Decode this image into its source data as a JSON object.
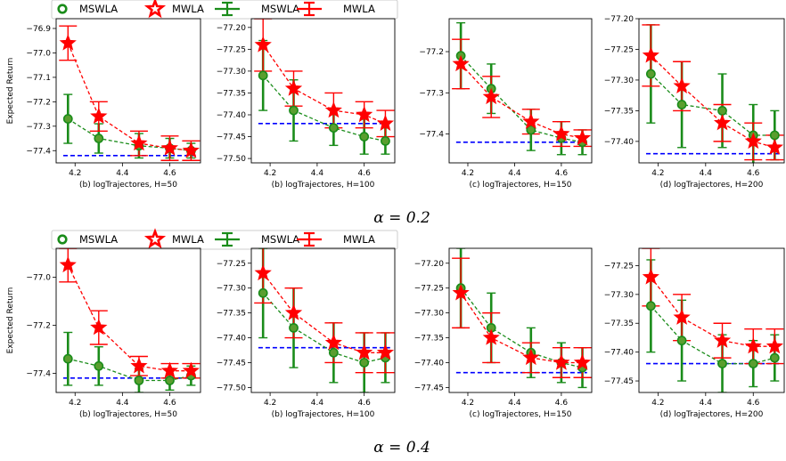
{
  "colors": {
    "mswla": "#1a8c1a",
    "mwla": "#ff0000",
    "reference": "#0000ff"
  },
  "legend": {
    "markers": [
      {
        "label": "MSWLA",
        "kind": "circle",
        "color": "#1a8c1a"
      },
      {
        "label": "MWLA",
        "kind": "star",
        "color": "#ff0000"
      },
      {
        "label": "MSWLA",
        "kind": "errorbar",
        "color": "#1a8c1a"
      },
      {
        "label": "MWLA",
        "kind": "errorbar",
        "color": "#ff0000"
      }
    ]
  },
  "chart_data": [
    {
      "alpha": "α = 0.2",
      "ylabel": "Expected Return",
      "panels": [
        {
          "type": "line",
          "xlabel": "(b) logTrajectores, H=50",
          "xlim": [
            4.12,
            4.73
          ],
          "ylim": [
            -77.45,
            -76.86
          ],
          "yticks": [
            -76.9,
            -77.0,
            -77.1,
            -77.2,
            -77.3,
            -77.4
          ],
          "yticklabels": [
            "−76.9",
            "−77.0",
            "−77.1",
            "−77.2",
            "−77.3",
            "−77.4"
          ],
          "xticks": [
            4.2,
            4.4,
            4.6
          ],
          "xticklabels": [
            "4.2",
            "4.4",
            "4.6"
          ],
          "x": [
            4.17,
            4.3,
            4.47,
            4.6,
            4.69
          ],
          "reference": -77.42,
          "series": [
            {
              "name": "MSWLA",
              "y": [
                -77.27,
                -77.35,
                -77.38,
                -77.39,
                -77.4
              ],
              "err": [
                0.1,
                0.06,
                0.05,
                0.04,
                0.03
              ]
            },
            {
              "name": "MWLA",
              "y": [
                -76.96,
                -77.26,
                -77.37,
                -77.39,
                -77.4
              ],
              "err": [
                0.07,
                0.06,
                0.05,
                0.05,
                0.04
              ]
            }
          ]
        },
        {
          "type": "line",
          "xlabel": "(b) logTrajectores, H=100",
          "xlim": [
            4.12,
            4.73
          ],
          "ylim": [
            -77.51,
            -77.18
          ],
          "yticks": [
            -77.2,
            -77.25,
            -77.3,
            -77.35,
            -77.4,
            -77.45,
            -77.5
          ],
          "yticklabels": [
            "−77.20",
            "−77.25",
            "−77.30",
            "−77.35",
            "−77.40",
            "−77.45",
            "−77.50"
          ],
          "xticks": [
            4.2,
            4.4,
            4.6
          ],
          "xticklabels": [
            "4.2",
            "4.4",
            "4.6"
          ],
          "x": [
            4.17,
            4.3,
            4.47,
            4.6,
            4.69
          ],
          "reference": -77.42,
          "series": [
            {
              "name": "MSWLA",
              "y": [
                -77.31,
                -77.39,
                -77.43,
                -77.45,
                -77.46
              ],
              "err": [
                0.08,
                0.07,
                0.04,
                0.04,
                0.03
              ]
            },
            {
              "name": "MWLA",
              "y": [
                -77.24,
                -77.34,
                -77.39,
                -77.4,
                -77.42
              ],
              "err": [
                0.06,
                0.04,
                0.04,
                0.03,
                0.03
              ]
            }
          ]
        },
        {
          "type": "line",
          "xlabel": "(c) logTrajectores, H=150",
          "xlim": [
            4.12,
            4.73
          ],
          "ylim": [
            -77.47,
            -77.12
          ],
          "yticks": [
            -77.2,
            -77.3,
            -77.4
          ],
          "yticklabels": [
            "−77.2",
            "−77.3",
            "−77.4"
          ],
          "xticks": [
            4.2,
            4.4,
            4.6
          ],
          "xticklabels": [
            "4.2",
            "4.4",
            "4.6"
          ],
          "x": [
            4.17,
            4.3,
            4.47,
            4.6,
            4.69
          ],
          "reference": -77.42,
          "series": [
            {
              "name": "MSWLA",
              "y": [
                -77.21,
                -77.29,
                -77.39,
                -77.41,
                -77.42
              ],
              "err": [
                0.08,
                0.06,
                0.05,
                0.04,
                0.03
              ]
            },
            {
              "name": "MWLA",
              "y": [
                -77.23,
                -77.31,
                -77.37,
                -77.4,
                -77.41
              ],
              "err": [
                0.06,
                0.05,
                0.03,
                0.03,
                0.02
              ]
            }
          ]
        },
        {
          "type": "line",
          "xlabel": "(d) logTrajectores, H=200",
          "xlim": [
            4.12,
            4.73
          ],
          "ylim": [
            -77.435,
            -77.2
          ],
          "yticks": [
            -77.2,
            -77.25,
            -77.3,
            -77.35,
            -77.4
          ],
          "yticklabels": [
            "−77.20",
            "−77.25",
            "−77.30",
            "−77.35",
            "−77.40"
          ],
          "xticks": [
            4.2,
            4.4,
            4.6
          ],
          "xticklabels": [
            "4.2",
            "4.4",
            "4.6"
          ],
          "x": [
            4.17,
            4.3,
            4.47,
            4.6,
            4.69
          ],
          "reference": -77.42,
          "series": [
            {
              "name": "MSWLA",
              "y": [
                -77.29,
                -77.34,
                -77.35,
                -77.39,
                -77.39
              ],
              "err": [
                0.08,
                0.07,
                0.06,
                0.05,
                0.04
              ]
            },
            {
              "name": "MWLA",
              "y": [
                -77.26,
                -77.31,
                -77.37,
                -77.4,
                -77.41
              ],
              "err": [
                0.05,
                0.04,
                0.03,
                0.03,
                0.02
              ]
            }
          ]
        }
      ]
    },
    {
      "alpha": "α = 0.4",
      "ylabel": "Expected Return",
      "panels": [
        {
          "type": "line",
          "xlabel": "(b) logTrajectores, H=50",
          "xlim": [
            4.12,
            4.73
          ],
          "ylim": [
            -77.48,
            -76.88
          ],
          "yticks": [
            -77.0,
            -77.2,
            -77.4
          ],
          "yticklabels": [
            "−77.0",
            "−77.2",
            "−77.4"
          ],
          "xticks": [
            4.2,
            4.4,
            4.6
          ],
          "xticklabels": [
            "4.2",
            "4.4",
            "4.6"
          ],
          "x": [
            4.17,
            4.3,
            4.47,
            4.6,
            4.69
          ],
          "reference": -77.42,
          "series": [
            {
              "name": "MSWLA",
              "y": [
                -77.34,
                -77.37,
                -77.43,
                -77.43,
                -77.41
              ],
              "err": [
                0.11,
                0.08,
                0.05,
                0.04,
                0.04
              ]
            },
            {
              "name": "MWLA",
              "y": [
                -76.95,
                -77.21,
                -77.37,
                -77.39,
                -77.39
              ],
              "err": [
                0.07,
                0.07,
                0.04,
                0.03,
                0.03
              ]
            }
          ]
        },
        {
          "type": "line",
          "xlabel": "(b) logTrajectores, H=100",
          "xlim": [
            4.12,
            4.73
          ],
          "ylim": [
            -77.51,
            -77.22
          ],
          "yticks": [
            -77.25,
            -77.3,
            -77.35,
            -77.4,
            -77.45,
            -77.5
          ],
          "yticklabels": [
            "−77.25",
            "−77.30",
            "−77.35",
            "−77.40",
            "−77.45",
            "−77.50"
          ],
          "xticks": [
            4.2,
            4.4,
            4.6
          ],
          "xticklabels": [
            "4.2",
            "4.4",
            "4.6"
          ],
          "x": [
            4.17,
            4.3,
            4.47,
            4.6,
            4.69
          ],
          "reference": -77.42,
          "series": [
            {
              "name": "MSWLA",
              "y": [
                -77.31,
                -77.38,
                -77.43,
                -77.45,
                -77.44
              ],
              "err": [
                0.09,
                0.08,
                0.06,
                0.06,
                0.05
              ]
            },
            {
              "name": "MWLA",
              "y": [
                -77.27,
                -77.35,
                -77.41,
                -77.43,
                -77.43
              ],
              "err": [
                0.06,
                0.05,
                0.04,
                0.04,
                0.04
              ]
            }
          ]
        },
        {
          "type": "line",
          "xlabel": "(c) logTrajectores, H=150",
          "xlim": [
            4.12,
            4.73
          ],
          "ylim": [
            -77.46,
            -77.17
          ],
          "yticks": [
            -77.2,
            -77.25,
            -77.3,
            -77.35,
            -77.4,
            -77.45
          ],
          "yticklabels": [
            "−77.20",
            "−77.25",
            "−77.30",
            "−77.35",
            "−77.40",
            "−77.45"
          ],
          "xticks": [
            4.2,
            4.4,
            4.6
          ],
          "xticklabels": [
            "4.2",
            "4.4",
            "4.6"
          ],
          "x": [
            4.17,
            4.3,
            4.47,
            4.6,
            4.69
          ],
          "reference": -77.42,
          "series": [
            {
              "name": "MSWLA",
              "y": [
                -77.25,
                -77.33,
                -77.38,
                -77.4,
                -77.41
              ],
              "err": [
                0.08,
                0.07,
                0.05,
                0.04,
                0.04
              ]
            },
            {
              "name": "MWLA",
              "y": [
                -77.26,
                -77.35,
                -77.39,
                -77.4,
                -77.4
              ],
              "err": [
                0.07,
                0.05,
                0.03,
                0.03,
                0.03
              ]
            }
          ]
        },
        {
          "type": "line",
          "xlabel": "(d) logTrajectores, H=200",
          "xlim": [
            4.12,
            4.73
          ],
          "ylim": [
            -77.47,
            -77.22
          ],
          "yticks": [
            -77.25,
            -77.3,
            -77.35,
            -77.4,
            -77.45
          ],
          "yticklabels": [
            "−77.25",
            "−77.30",
            "−77.35",
            "−77.40",
            "−77.45"
          ],
          "xticks": [
            4.2,
            4.4,
            4.6
          ],
          "xticklabels": [
            "4.2",
            "4.4",
            "4.6"
          ],
          "x": [
            4.17,
            4.3,
            4.47,
            4.6,
            4.69
          ],
          "reference": -77.42,
          "series": [
            {
              "name": "MSWLA",
              "y": [
                -77.32,
                -77.38,
                -77.42,
                -77.42,
                -77.41
              ],
              "err": [
                0.08,
                0.07,
                0.05,
                0.04,
                0.04
              ]
            },
            {
              "name": "MWLA",
              "y": [
                -77.27,
                -77.34,
                -77.38,
                -77.39,
                -77.39
              ],
              "err": [
                0.05,
                0.04,
                0.03,
                0.03,
                0.03
              ]
            }
          ]
        }
      ]
    }
  ]
}
